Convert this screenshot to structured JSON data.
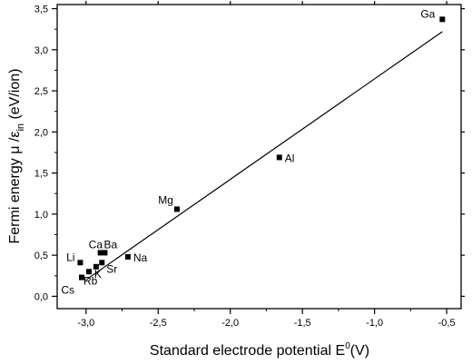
{
  "chart_data": {
    "type": "scatter",
    "xlabel_main": "Standard electrode potential E",
    "xlabel_sup": "0",
    "xlabel_tail": "(V)",
    "ylabel_main": "Fermi energy μ /ε",
    "ylabel_sub": "in",
    "ylabel_tail": " (eV/ion)",
    "xlim": [
      -3.2,
      -0.4
    ],
    "ylim": [
      -0.15,
      3.55
    ],
    "xticks": [
      -3.0,
      -2.5,
      -2.0,
      -1.5,
      -1.0,
      -0.5
    ],
    "xtick_labels": [
      "-3,0",
      "-2,5",
      "-2,0",
      "-1,5",
      "-1,0",
      "-0,5"
    ],
    "yticks": [
      0.0,
      0.5,
      1.0,
      1.5,
      2.0,
      2.5,
      3.0,
      3.5
    ],
    "ytick_labels": [
      "0,0",
      "0,5",
      "1,0",
      "1,5",
      "2,0",
      "2,5",
      "3,0",
      "3,5"
    ],
    "points": [
      {
        "label": "Ga",
        "x": -0.53,
        "y": 3.37
      },
      {
        "label": "Al",
        "x": -1.66,
        "y": 1.69
      },
      {
        "label": "Mg",
        "x": -2.37,
        "y": 1.06
      },
      {
        "label": "Na",
        "x": -2.71,
        "y": 0.48
      },
      {
        "label": "Ca",
        "x": -2.9,
        "y": 0.53
      },
      {
        "label": "Ba",
        "x": -2.87,
        "y": 0.53
      },
      {
        "label": "Sr",
        "x": -2.89,
        "y": 0.41
      },
      {
        "label": "K",
        "x": -2.93,
        "y": 0.36
      },
      {
        "label": "Rb",
        "x": -2.98,
        "y": 0.3
      },
      {
        "label": "Cs",
        "x": -3.03,
        "y": 0.23
      },
      {
        "label": "Li",
        "x": -3.04,
        "y": 0.41
      }
    ],
    "fit_line": {
      "x": [
        -3.0,
        -0.53
      ],
      "y": [
        0.2,
        3.22
      ]
    },
    "grid": false,
    "legend": "none"
  }
}
